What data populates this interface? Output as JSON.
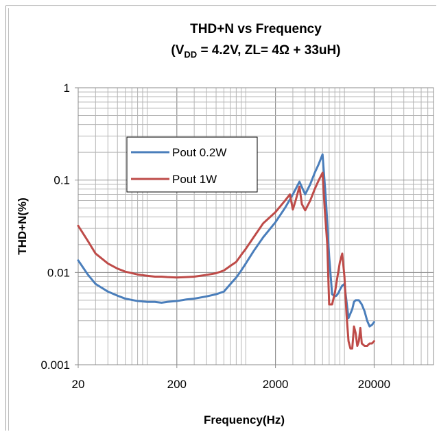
{
  "chart_data": {
    "type": "line",
    "title_line1": "THD+N vs Frequency",
    "title_line2_prefix": "(V",
    "title_line2_sub": "DD",
    "title_line2_suffix": " = 4.2V, ZL= 4Ω + 33uH)",
    "xlabel": "Frequency(Hz)",
    "ylabel": "THD+N(%)",
    "x_scale": "log",
    "y_scale": "log",
    "xlim": [
      20,
      80000
    ],
    "ylim": [
      0.001,
      1
    ],
    "grid": true,
    "legend_placement": "upper-left",
    "x_ticks": [
      {
        "value": 20,
        "label": "20"
      },
      {
        "value": 200,
        "label": "200"
      },
      {
        "value": 2000,
        "label": "2000"
      },
      {
        "value": 20000,
        "label": "20000"
      }
    ],
    "y_ticks": [
      {
        "value": 1,
        "label": "1"
      },
      {
        "value": 0.1,
        "label": "0.1"
      },
      {
        "value": 0.01,
        "label": "0.01"
      },
      {
        "value": 0.001,
        "label": "0.001"
      }
    ],
    "series": [
      {
        "name": "Pout 0.2W",
        "color": "#4a7ebb",
        "x": [
          20,
          25,
          30,
          40,
          50,
          60,
          80,
          100,
          120,
          140,
          160,
          200,
          250,
          300,
          400,
          500,
          600,
          700,
          800,
          900,
          1000,
          1200,
          1500,
          2000,
          2500,
          3000,
          3500,
          4000,
          4500,
          5000,
          5500,
          6000,
          6500,
          7000,
          7500,
          8000,
          8300,
          8700,
          9000,
          9500,
          10000,
          11000,
          12000,
          12500,
          13000,
          14000,
          15000,
          16000,
          17000,
          18000,
          19000,
          20000
        ],
        "y": [
          0.0135,
          0.0095,
          0.0075,
          0.0062,
          0.0056,
          0.0052,
          0.0049,
          0.0048,
          0.0048,
          0.0047,
          0.0048,
          0.0049,
          0.0051,
          0.0052,
          0.0055,
          0.0058,
          0.0062,
          0.0075,
          0.0088,
          0.0105,
          0.0125,
          0.017,
          0.024,
          0.035,
          0.05,
          0.07,
          0.096,
          0.07,
          0.09,
          0.12,
          0.15,
          0.19,
          0.06,
          0.015,
          0.0058,
          0.0055,
          0.0056,
          0.006,
          0.0065,
          0.0072,
          0.0075,
          0.0032,
          0.004,
          0.0048,
          0.005,
          0.005,
          0.0045,
          0.0038,
          0.003,
          0.0026,
          0.0027,
          0.0029
        ]
      },
      {
        "name": "Pout 1W",
        "color": "#be4b48",
        "x": [
          20,
          25,
          30,
          40,
          50,
          60,
          80,
          100,
          120,
          140,
          160,
          200,
          250,
          300,
          400,
          500,
          600,
          700,
          800,
          900,
          1000,
          1200,
          1500,
          2000,
          2500,
          2800,
          3000,
          3200,
          3500,
          3700,
          4000,
          4500,
          5000,
          5500,
          6000,
          6300,
          6700,
          7000,
          7500,
          8000,
          8500,
          9000,
          9500,
          10000,
          10500,
          11000,
          11500,
          12000,
          12500,
          13000,
          13500,
          14000,
          14500,
          15000,
          16000,
          17000,
          18000,
          19000,
          20000
        ],
        "y": [
          0.032,
          0.022,
          0.016,
          0.0125,
          0.011,
          0.0102,
          0.0095,
          0.0092,
          0.009,
          0.009,
          0.0089,
          0.0088,
          0.0089,
          0.009,
          0.0094,
          0.0098,
          0.0105,
          0.0118,
          0.013,
          0.0155,
          0.018,
          0.024,
          0.034,
          0.045,
          0.06,
          0.07,
          0.048,
          0.06,
          0.085,
          0.055,
          0.047,
          0.06,
          0.08,
          0.1,
          0.12,
          0.05,
          0.02,
          0.0045,
          0.0045,
          0.006,
          0.009,
          0.013,
          0.016,
          0.009,
          0.0035,
          0.0018,
          0.0015,
          0.0015,
          0.0026,
          0.0022,
          0.0016,
          0.0018,
          0.0025,
          0.0017,
          0.0016,
          0.0016,
          0.0017,
          0.0017,
          0.0018
        ]
      }
    ]
  }
}
